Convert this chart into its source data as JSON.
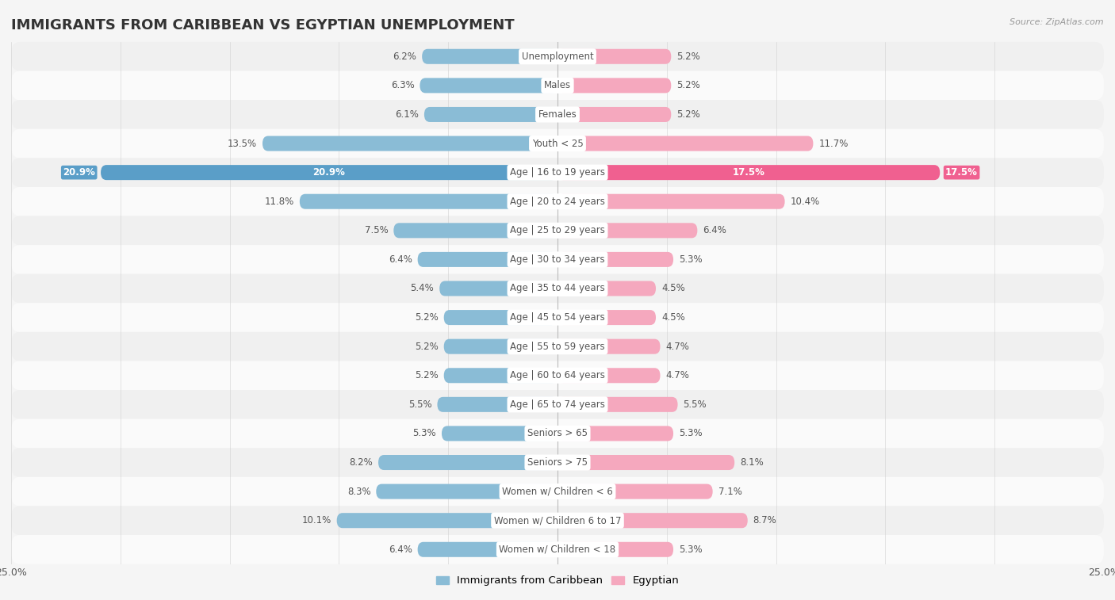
{
  "title": "IMMIGRANTS FROM CARIBBEAN VS EGYPTIAN UNEMPLOYMENT",
  "source": "Source: ZipAtlas.com",
  "categories": [
    "Unemployment",
    "Males",
    "Females",
    "Youth < 25",
    "Age | 16 to 19 years",
    "Age | 20 to 24 years",
    "Age | 25 to 29 years",
    "Age | 30 to 34 years",
    "Age | 35 to 44 years",
    "Age | 45 to 54 years",
    "Age | 55 to 59 years",
    "Age | 60 to 64 years",
    "Age | 65 to 74 years",
    "Seniors > 65",
    "Seniors > 75",
    "Women w/ Children < 6",
    "Women w/ Children 6 to 17",
    "Women w/ Children < 18"
  ],
  "caribbean_values": [
    6.2,
    6.3,
    6.1,
    13.5,
    20.9,
    11.8,
    7.5,
    6.4,
    5.4,
    5.2,
    5.2,
    5.2,
    5.5,
    5.3,
    8.2,
    8.3,
    10.1,
    6.4
  ],
  "egyptian_values": [
    5.2,
    5.2,
    5.2,
    11.7,
    17.5,
    10.4,
    6.4,
    5.3,
    4.5,
    4.5,
    4.7,
    4.7,
    5.5,
    5.3,
    8.1,
    7.1,
    8.7,
    5.3
  ],
  "caribbean_color": "#8abcd6",
  "egyptian_color": "#f5a8be",
  "caribbean_highlight_color": "#5a9ec8",
  "egyptian_highlight_color": "#f06090",
  "highlight_idx": 4,
  "xlim": 25.0,
  "bar_height": 0.52,
  "row_bg_odd": "#f0f0f0",
  "row_bg_even": "#fafafa",
  "fig_bg": "#f5f5f5",
  "legend_caribbean": "Immigrants from Caribbean",
  "legend_egyptian": "Egyptian",
  "title_fontsize": 13,
  "label_fontsize": 8.5,
  "category_fontsize": 8.5,
  "value_color": "#555555",
  "category_color": "#555555"
}
